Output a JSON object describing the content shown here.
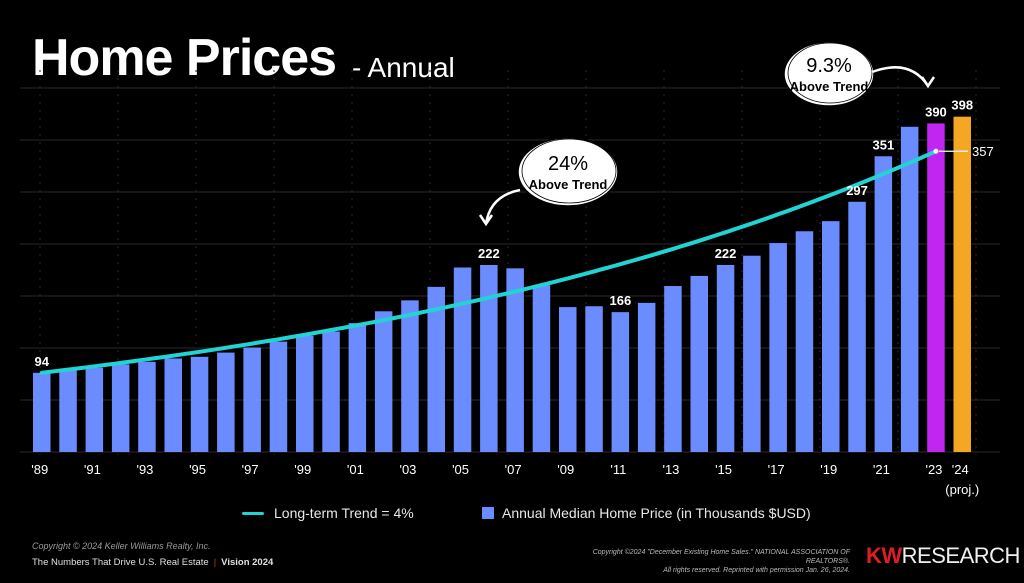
{
  "title": "Home Prices",
  "subtitle": "- Annual",
  "chart_data": {
    "type": "bar",
    "title": "Home Prices - Annual",
    "categories": [
      "1989",
      "1990",
      "1991",
      "1992",
      "1993",
      "1994",
      "1995",
      "1996",
      "1997",
      "1998",
      "1999",
      "2000",
      "2001",
      "2002",
      "2003",
      "2004",
      "2005",
      "2006",
      "2007",
      "2008",
      "2009",
      "2010",
      "2011",
      "2012",
      "2013",
      "2014",
      "2015",
      "2016",
      "2017",
      "2018",
      "2019",
      "2020",
      "2021",
      "2022",
      "2023",
      "2024"
    ],
    "x_tick_labels": [
      "'89",
      "'91",
      "'93",
      "'95",
      "'97",
      "'99",
      "'01",
      "'03",
      "'05",
      "'07",
      "'09",
      "'11",
      "'13",
      "'15",
      "'17",
      "'19",
      "'21",
      "'23",
      "'24"
    ],
    "x_tick_note": "(proj.)",
    "series": [
      {
        "name": "Annual Median Home Price (in Thousands $USD)",
        "type": "bar",
        "values": [
          94,
          97,
          100,
          104,
          107,
          111,
          113,
          118,
          124,
          131,
          138,
          143,
          153,
          167,
          180,
          196,
          219,
          222,
          218,
          198,
          172,
          173,
          166,
          177,
          197,
          209,
          222,
          233,
          248,
          262,
          274,
          297,
          351,
          386,
          390,
          398
        ]
      },
      {
        "name": "Long-term Trend = 4%",
        "type": "line",
        "start_value": 94,
        "end_value": 357,
        "end_year": "2023"
      }
    ],
    "highlight": {
      "2023": "#c026f0",
      "2024": "#f5a623"
    },
    "data_labels": [
      {
        "category": "1989",
        "text": "94"
      },
      {
        "category": "2006",
        "text": "222"
      },
      {
        "category": "2011",
        "text": "166"
      },
      {
        "category": "2015",
        "text": "222"
      },
      {
        "category": "2020",
        "text": "297"
      },
      {
        "category": "2021",
        "text": "351"
      },
      {
        "category": "2023",
        "text": "390"
      },
      {
        "category": "2024",
        "text": "398"
      },
      {
        "category": "trend-2023",
        "text": "357"
      }
    ],
    "annotations": [
      {
        "category": "2006",
        "line1": "24%",
        "line2": "Above Trend"
      },
      {
        "category": "2023",
        "line1": "9.3%",
        "line2": "Above Trend"
      }
    ],
    "ylim": [
      0,
      420
    ],
    "grid": true,
    "legend": "bottom"
  },
  "legend": {
    "trend_label": "Long-term Trend = 4%",
    "bar_label": "Annual Median Home Price (in Thousands $USD)"
  },
  "footer": {
    "copyright": "Copyright © 2024 Keller Williams Realty, Inc.",
    "tagline": "The Numbers That Drive U.S. Real Estate",
    "separator": "|",
    "edition": "Vision 2024",
    "source_line1": "Copyright ©2024 \"December Existing Home Sales.\" NATIONAL ASSOCIATION OF REALTORS®.",
    "source_line2": "All rights reserved. Reprinted with permission Jan. 26, 2024.",
    "brand_kw": "KW",
    "brand_research": "RESEARCH"
  },
  "colors": {
    "bar": "#6b8cff",
    "trend": "#22d3d3",
    "highlight_2023": "#c026f0",
    "highlight_2024": "#f5a623",
    "grid": "#2a2a2a"
  }
}
